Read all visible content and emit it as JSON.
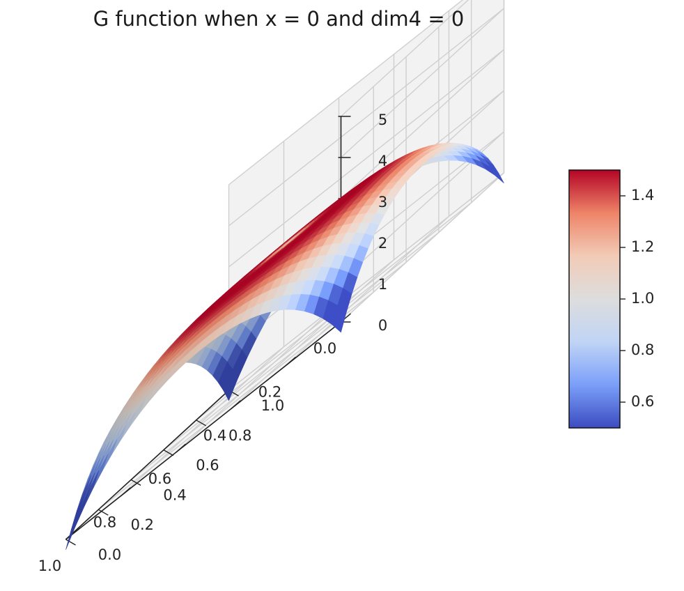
{
  "chart_data": {
    "type": "surface",
    "title": "G function when x = 0 and dim4 = 0",
    "xlabel": "",
    "ylabel": "",
    "zlabel": "",
    "x_ticks": [
      "0.0",
      "0.2",
      "0.4",
      "0.6",
      "0.8",
      "1.0"
    ],
    "y_ticks": [
      "0.0",
      "0.2",
      "0.4",
      "0.6",
      "0.8",
      "1.0"
    ],
    "z_ticks": [
      "0",
      "1",
      "2",
      "3",
      "4",
      "5"
    ],
    "xlim": [
      0,
      1
    ],
    "ylim": [
      0,
      1
    ],
    "zlim": [
      0,
      5
    ],
    "grid": true,
    "colormap": "coolwarm",
    "colormap_stops": [
      "#3b4cc0",
      "#7b9ff9",
      "#c0d4f5",
      "#dddddd",
      "#f2cbb7",
      "#ee8468",
      "#b40426"
    ],
    "colorbar": {
      "range": [
        0.5,
        1.5
      ],
      "ticks": [
        "0.6",
        "0.8",
        "1.0",
        "1.2",
        "1.4"
      ],
      "tick_values": [
        0.6,
        0.8,
        1.0,
        1.2,
        1.4
      ]
    },
    "surface": {
      "grid_size": 30,
      "corner_value": 0.5,
      "plateau_value": 1.5,
      "center_value": 1.15,
      "corner_z": 0.0,
      "plateau_z": 2.7
    }
  }
}
